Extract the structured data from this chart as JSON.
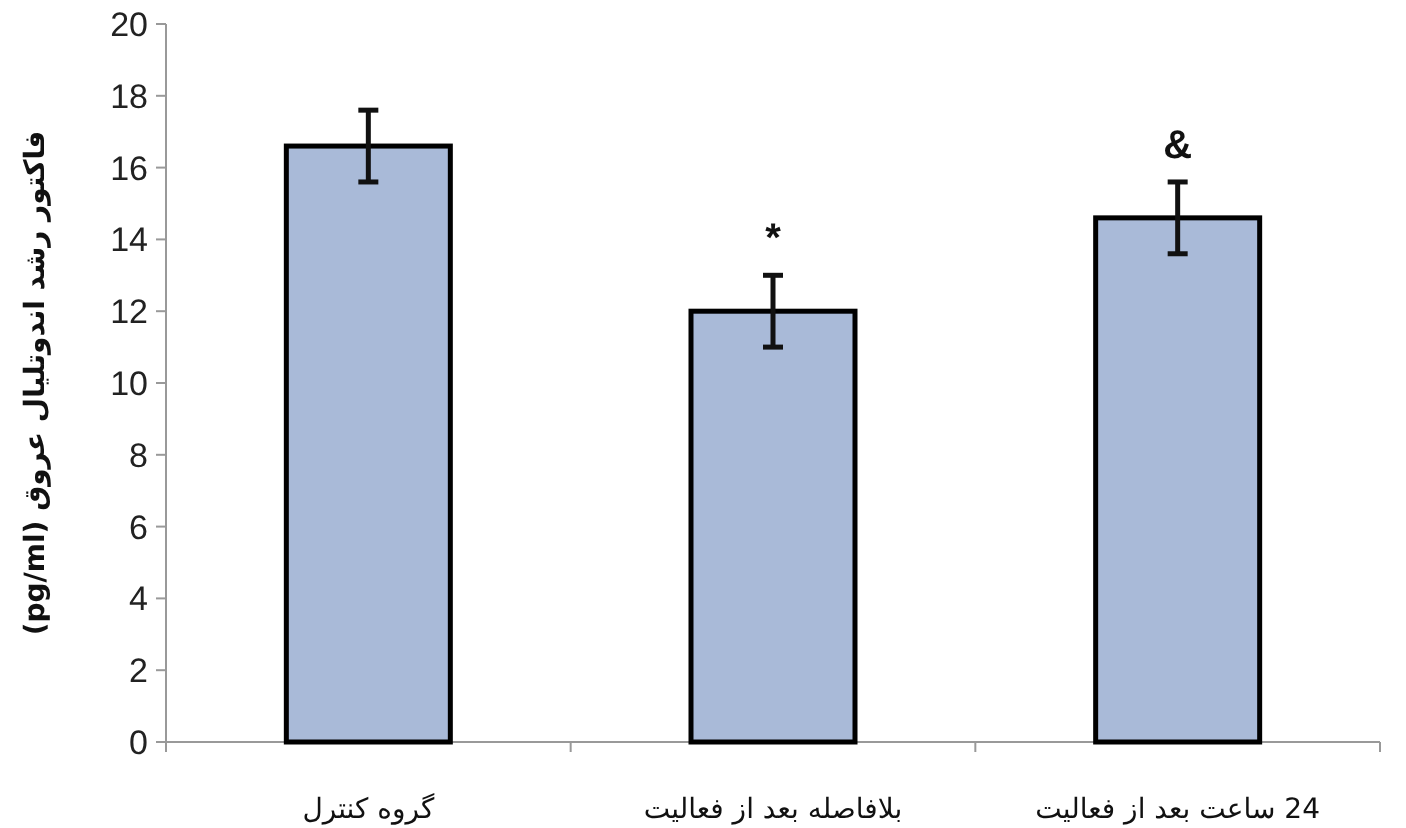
{
  "chart_data": {
    "type": "bar",
    "ylabel": "فاکتور رشد اندوتلیال عروق (pg/ml)",
    "categories": [
      "گروه کنترل",
      "بلافاصله بعد از فعالیت",
      "24 ساعت بعد از فعالیت"
    ],
    "values": [
      16.6,
      12.0,
      14.6
    ],
    "errors": [
      1.0,
      1.0,
      1.0
    ],
    "color": "#a9bad8",
    "ylim": [
      0,
      20
    ],
    "yticks": [
      0,
      2,
      4,
      6,
      8,
      10,
      12,
      14,
      16,
      18,
      20
    ],
    "annotations": [
      "*",
      "&"
    ]
  }
}
